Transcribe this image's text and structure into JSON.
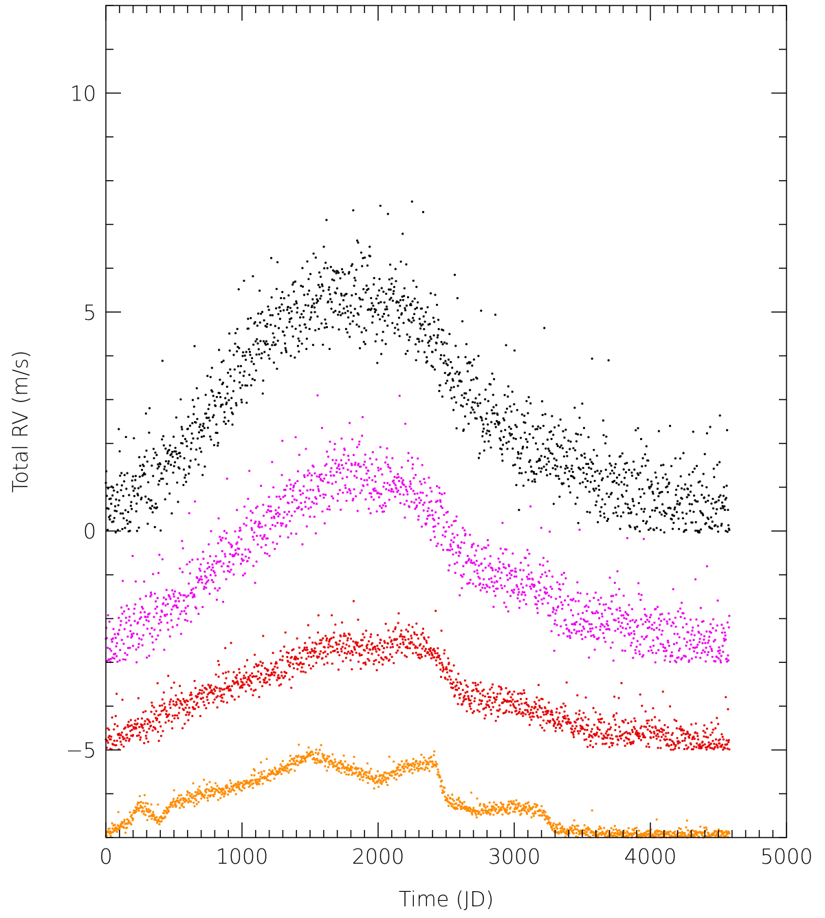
{
  "chart_data": {
    "type": "scatter",
    "title": "",
    "xlabel": "Time (JD)",
    "ylabel": "Total RV (m/s)",
    "xlim": [
      0,
      5000
    ],
    "ylim": [
      -7,
      12
    ],
    "x_major_ticks": [
      0,
      1000,
      2000,
      3000,
      4000,
      5000
    ],
    "x_tick_labels": [
      "0",
      "1000",
      "2000",
      "3000",
      "4000",
      "5000"
    ],
    "y_major_ticks": [
      -5,
      0,
      5,
      10
    ],
    "y_tick_labels": [
      "−5",
      "0",
      "5",
      "10"
    ],
    "grid": false,
    "legend": "none",
    "series": [
      {
        "color": "#000000",
        "x_range": [
          0,
          4580
        ],
        "trend": [
          [
            0,
            0.4
          ],
          [
            250,
            0.9
          ],
          [
            500,
            1.6
          ],
          [
            750,
            2.6
          ],
          [
            1000,
            3.6
          ],
          [
            1250,
            4.6
          ],
          [
            1500,
            5.2
          ],
          [
            1750,
            5.4
          ],
          [
            2000,
            5.2
          ],
          [
            2250,
            4.9
          ],
          [
            2450,
            4.2
          ],
          [
            2600,
            3.3
          ],
          [
            2800,
            2.6
          ],
          [
            3000,
            2.2
          ],
          [
            3250,
            1.9
          ],
          [
            3500,
            1.2
          ],
          [
            3800,
            0.9
          ],
          [
            4100,
            0.7
          ],
          [
            4580,
            0.4
          ]
        ],
        "spread": 1.5,
        "lower_bound": -0.05
      },
      {
        "color": "#ee00ee",
        "x_range": [
          0,
          4580
        ],
        "trend": [
          [
            0,
            -2.6
          ],
          [
            250,
            -2.2
          ],
          [
            500,
            -1.7
          ],
          [
            750,
            -0.9
          ],
          [
            1000,
            -0.3
          ],
          [
            1250,
            0.3
          ],
          [
            1500,
            0.9
          ],
          [
            1750,
            1.3
          ],
          [
            2000,
            1.2
          ],
          [
            2250,
            1.0
          ],
          [
            2450,
            0.3
          ],
          [
            2600,
            -0.6
          ],
          [
            2800,
            -0.9
          ],
          [
            3000,
            -1.1
          ],
          [
            3250,
            -1.4
          ],
          [
            3500,
            -2.0
          ],
          [
            3800,
            -2.2
          ],
          [
            4100,
            -2.4
          ],
          [
            4580,
            -2.7
          ]
        ],
        "spread": 1.1,
        "lower_bound": -3.0
      },
      {
        "color": "#e60000",
        "x_range": [
          0,
          4580
        ],
        "trend": [
          [
            0,
            -4.8
          ],
          [
            250,
            -4.5
          ],
          [
            500,
            -4.1
          ],
          [
            750,
            -3.7
          ],
          [
            1000,
            -3.4
          ],
          [
            1250,
            -3.2
          ],
          [
            1500,
            -2.8
          ],
          [
            1750,
            -2.6
          ],
          [
            2000,
            -2.8
          ],
          [
            2250,
            -2.4
          ],
          [
            2450,
            -2.9
          ],
          [
            2600,
            -3.7
          ],
          [
            2800,
            -3.9
          ],
          [
            3000,
            -3.9
          ],
          [
            3250,
            -4.2
          ],
          [
            3500,
            -4.5
          ],
          [
            3800,
            -4.6
          ],
          [
            4100,
            -4.7
          ],
          [
            4580,
            -4.9
          ]
        ],
        "spread": 0.55,
        "lower_bound": -5.0
      },
      {
        "color": "#ff8c00",
        "x_range": [
          0,
          4580
        ],
        "trend": [
          [
            0,
            -6.9
          ],
          [
            150,
            -6.7
          ],
          [
            250,
            -6.3
          ],
          [
            400,
            -6.6
          ],
          [
            500,
            -6.2
          ],
          [
            750,
            -6.0
          ],
          [
            1000,
            -5.8
          ],
          [
            1250,
            -5.5
          ],
          [
            1500,
            -5.1
          ],
          [
            1750,
            -5.4
          ],
          [
            2000,
            -5.7
          ],
          [
            2200,
            -5.4
          ],
          [
            2420,
            -5.3
          ],
          [
            2500,
            -6.1
          ],
          [
            2700,
            -6.4
          ],
          [
            3000,
            -6.3
          ],
          [
            3200,
            -6.4
          ],
          [
            3300,
            -6.8
          ],
          [
            3600,
            -6.9
          ],
          [
            4000,
            -6.95
          ],
          [
            4580,
            -7.0
          ]
        ],
        "spread": 0.22,
        "lower_bound": -7.0
      }
    ]
  }
}
